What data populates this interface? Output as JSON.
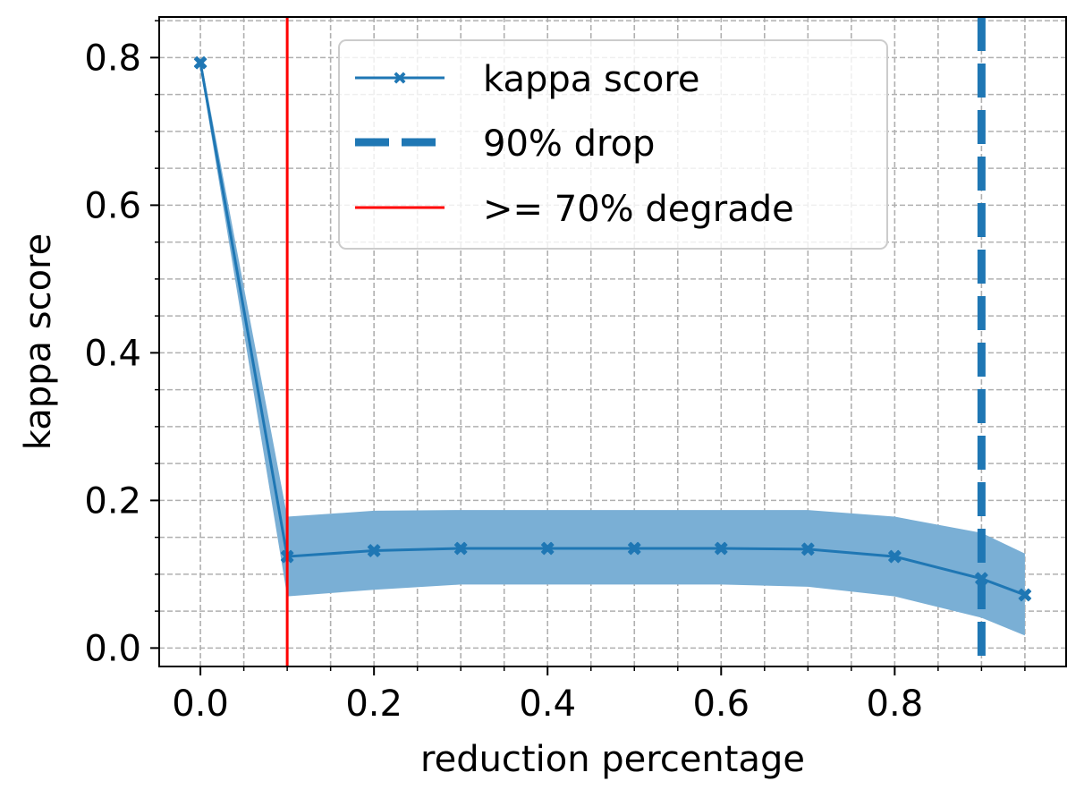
{
  "chart_data": {
    "type": "line",
    "xlabel": "reduction percentage",
    "ylabel": "kappa score",
    "xlim": [
      -0.0475,
      0.9975
    ],
    "ylim": [
      -0.025,
      0.855
    ],
    "x_ticks": [
      0.0,
      0.2,
      0.4,
      0.6,
      0.8
    ],
    "x_tick_labels": [
      "0.0",
      "0.2",
      "0.4",
      "0.6",
      "0.8"
    ],
    "x_minor_ticks": [
      0.05,
      0.1,
      0.15,
      0.25,
      0.3,
      0.35,
      0.45,
      0.5,
      0.55,
      0.65,
      0.7,
      0.75,
      0.85,
      0.9,
      0.95
    ],
    "y_ticks": [
      0.0,
      0.2,
      0.4,
      0.6,
      0.8
    ],
    "y_tick_labels": [
      "0.0",
      "0.2",
      "0.4",
      "0.6",
      "0.8"
    ],
    "y_minor_ticks": [
      0.05,
      0.1,
      0.15,
      0.25,
      0.3,
      0.35,
      0.45,
      0.5,
      0.55,
      0.65,
      0.7,
      0.75,
      0.85
    ],
    "grid": true,
    "legend_position": "top-center",
    "series": [
      {
        "name": "kappa score",
        "x": [
          0.0,
          0.1,
          0.2,
          0.3,
          0.4,
          0.5,
          0.6,
          0.7,
          0.8,
          0.9,
          0.95
        ],
        "values": [
          0.793,
          0.124,
          0.132,
          0.135,
          0.135,
          0.135,
          0.135,
          0.134,
          0.124,
          0.094,
          0.072
        ],
        "lower": [
          0.785,
          0.07,
          0.079,
          0.086,
          0.086,
          0.086,
          0.086,
          0.083,
          0.07,
          0.041,
          0.017
        ],
        "upper": [
          0.801,
          0.178,
          0.186,
          0.187,
          0.187,
          0.187,
          0.187,
          0.187,
          0.178,
          0.156,
          0.128
        ],
        "color": "#1f77b4",
        "band_color": "#7aafd5",
        "marker": "X"
      }
    ],
    "vlines": [
      {
        "name": "90% drop",
        "x": 0.9,
        "color": "#1f77b4",
        "style": "dashed"
      },
      {
        "name": ">= 70% degrade",
        "x": 0.1,
        "color": "#ff0000",
        "style": "solid"
      }
    ],
    "legend": [
      {
        "label": "kappa score",
        "kind": "line-marker",
        "color": "#1f77b4"
      },
      {
        "label": "90% drop",
        "kind": "dashed",
        "color": "#1f77b4"
      },
      {
        "label": ">= 70% degrade",
        "kind": "solid",
        "color": "#ff0000"
      }
    ]
  }
}
